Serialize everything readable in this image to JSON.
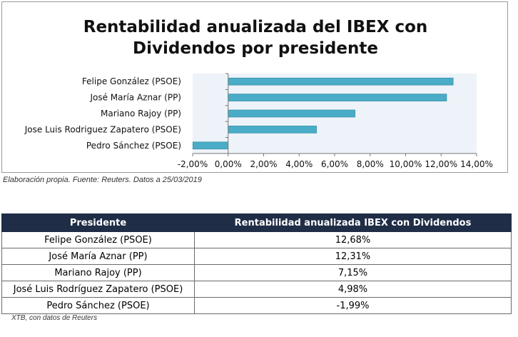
{
  "chart_data": {
    "type": "bar",
    "orientation": "horizontal",
    "title": "Rentabilidad anualizada del IBEX con Dividendos por presidente",
    "title_lines": [
      "Rentabilidad anualizada del IBEX con",
      "Dividendos por presidente"
    ],
    "categories": [
      "Felipe González (PSOE)",
      "José María Aznar (PP)",
      "Mariano Rajoy (PP)",
      "Jose Luis Rodriguez Zapatero (PSOE)",
      "Pedro Sánchez (PSOE)"
    ],
    "values": [
      12.68,
      12.31,
      7.15,
      4.98,
      -1.99
    ],
    "xlim": [
      -2,
      14
    ],
    "x_ticks": [
      -2,
      0,
      2,
      4,
      6,
      8,
      10,
      12,
      14
    ],
    "x_tick_labels": [
      "-2,00%",
      "0,00%",
      "2,00%",
      "4,00%",
      "6,00%",
      "8,00%",
      "10,00%",
      "12,00%",
      "14,00%"
    ],
    "grid": false,
    "legend": "none",
    "colors": {
      "bar": "#4aacc6",
      "bar_edge": "#2e8aa3",
      "plot_bg": "#edf3f8"
    }
  },
  "source_chart": "Elaboración propia. Fuente: Reuters. Datos a 25/03/2019",
  "table": {
    "headers": [
      "Presidente",
      "Rentabilidad anualizada IBEX con Dividendos"
    ],
    "rows": [
      [
        "Felipe González (PSOE)",
        "12,68%"
      ],
      [
        "José María Aznar (PP)",
        "12,31%"
      ],
      [
        "Mariano Rajoy (PP)",
        "7,15%"
      ],
      [
        "José Luis Rodríguez Zapatero (PSOE)",
        "4,98%"
      ],
      [
        "Pedro Sánchez (PSOE)",
        "-1,99%"
      ]
    ]
  },
  "source_table": "XTB, con datos de Reuters"
}
